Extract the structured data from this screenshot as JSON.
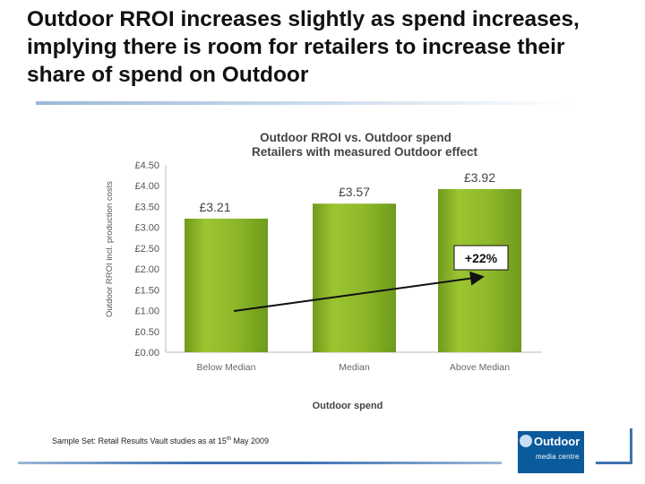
{
  "slide": {
    "title": "Outdoor RROI increases slightly as spend increases, implying there is room for retailers to increase their share of spend on Outdoor",
    "footnote": {
      "before": "Sample Set: Retail Results Vault studies as at 15",
      "superscript": "th",
      "after": " May 2009"
    },
    "logo": {
      "main": "Outdoor",
      "sub": "media centre"
    }
  },
  "chart_data": {
    "type": "bar",
    "title": "Outdoor RROI vs. Outdoor spend",
    "subtitle": "Retailers with measured Outdoor effect",
    "xlabel": "Outdoor spend",
    "ylabel": "Outdoor RROI incl. production costs",
    "categories": [
      "Below Median",
      "Median",
      "Above Median"
    ],
    "values": [
      3.21,
      3.57,
      3.92
    ],
    "value_labels": [
      "£3.21",
      "£3.57",
      "£3.92"
    ],
    "ylim": [
      0,
      4.5
    ],
    "y_ticks": [
      "£0.00",
      "£0.50",
      "£1.00",
      "£1.50",
      "£2.00",
      "£2.50",
      "£3.00",
      "£3.50",
      "£4.00",
      "£4.50"
    ],
    "grid": false,
    "bar_color": "#8db42a",
    "annotation": {
      "text": "+22%",
      "type": "trend-arrow"
    }
  }
}
